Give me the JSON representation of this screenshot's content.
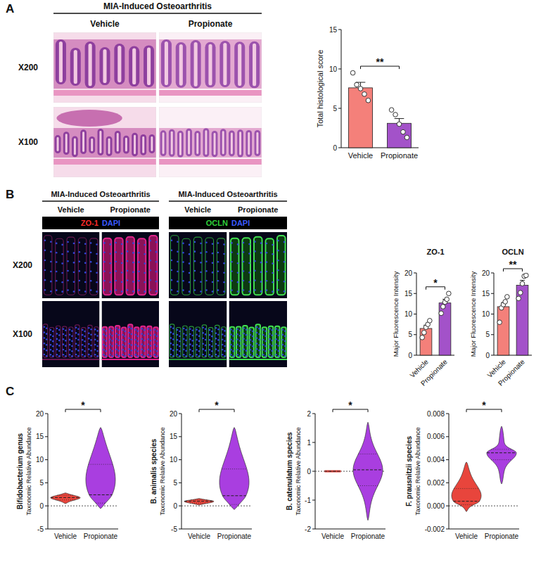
{
  "figure": {
    "panels": [
      {
        "letter": "A",
        "title": "MIA-Induced Osteoarthritis",
        "columns": [
          "Vehicle",
          "Propionate"
        ],
        "rows": [
          "X200",
          "X100"
        ]
      },
      {
        "letter": "B",
        "rows": [
          "X200",
          "X100"
        ],
        "groups": [
          {
            "title": "MIA-Induced Osteoarthritis",
            "columns": [
              "Vehicle",
              "Propionate"
            ],
            "stain": [
              {
                "text": "ZO-1",
                "color": "#ff2a2a"
              },
              {
                "text": "DAPI",
                "color": "#3b5bff"
              }
            ]
          },
          {
            "title": "MIA-Induced Osteoarthritis",
            "columns": [
              "Vehicle",
              "Propionate"
            ],
            "stain": [
              {
                "text": "OCLN",
                "color": "#2fd13a"
              },
              {
                "text": "DAPI",
                "color": "#3b5bff"
              }
            ]
          }
        ]
      },
      {
        "letter": "C"
      }
    ]
  },
  "chart_data": [
    {
      "type": "bar",
      "ylabel": "Total histological score",
      "categories": [
        "Vehicle",
        "Propionate"
      ],
      "values": [
        7.6,
        3.1
      ],
      "errors": [
        0.7,
        0.6
      ],
      "points": [
        [
          9.5,
          8.0,
          7.5,
          6.8,
          6.0
        ],
        [
          4.8,
          4.2,
          3.0,
          2.0,
          1.3
        ]
      ],
      "colors": [
        "#f4807a",
        "#a352c9"
      ],
      "ylim": [
        0,
        15
      ],
      "yticks": [
        0,
        5,
        10,
        15
      ],
      "significance": "**"
    },
    {
      "type": "bar",
      "title": "ZO-1",
      "ylabel": "Major Fluorescence Intensity",
      "categories": [
        "Vehicle",
        "Propionate"
      ],
      "values": [
        6.5,
        12.7
      ],
      "errors": [
        0.8,
        0.9
      ],
      "points": [
        [
          4.3,
          5.5,
          6.8,
          7.5,
          8.4
        ],
        [
          10.2,
          11.8,
          12.9,
          13.6,
          15.0
        ]
      ],
      "colors": [
        "#f4807a",
        "#a352c9"
      ],
      "ylim": [
        0,
        20
      ],
      "yticks": [
        0,
        5,
        10,
        15,
        20
      ],
      "significance": "*"
    },
    {
      "type": "bar",
      "title": "OCLN",
      "ylabel": "Major Fluorescence Intensity",
      "categories": [
        "Vehicle",
        "Propionate"
      ],
      "values": [
        11.8,
        17.0
      ],
      "errors": [
        1.0,
        1.2
      ],
      "points": [
        [
          8.0,
          11.5,
          12.3,
          13.0,
          14.2
        ],
        [
          13.8,
          15.2,
          17.4,
          19.2,
          19.4
        ]
      ],
      "colors": [
        "#f4807a",
        "#a352c9"
      ],
      "ylim": [
        0,
        20
      ],
      "yticks": [
        0,
        5,
        10,
        15,
        20
      ],
      "significance": "**"
    },
    {
      "type": "violin",
      "title": "Bifidobacterium genus",
      "ylabel": "Taxonomic Relative Abundance",
      "categories": [
        "Vehicle",
        "Propionate"
      ],
      "colors": [
        "#e8453c",
        "#a93ee0"
      ],
      "violins": [
        {
          "min": 0.5,
          "q1": 1.3,
          "median": 1.8,
          "q3": 2.3,
          "max": 2.8
        },
        {
          "min": -0.6,
          "q1": 0.6,
          "median": 2.4,
          "q3": 9.0,
          "max": 17.0
        }
      ],
      "ylim": [
        -5,
        20
      ],
      "yticks": [
        -5,
        0,
        5,
        10,
        15,
        20
      ],
      "reference_line": 0,
      "significance": "*"
    },
    {
      "type": "violin",
      "title": "B. animalis species",
      "ylabel": "Taxonomic Relative Abundance",
      "categories": [
        "Vehicle",
        "Propionate"
      ],
      "colors": [
        "#e8453c",
        "#a93ee0"
      ],
      "violins": [
        {
          "min": 0.2,
          "q1": 0.6,
          "median": 1.0,
          "q3": 1.3,
          "max": 1.6
        },
        {
          "min": -0.8,
          "q1": 0.3,
          "median": 2.2,
          "q3": 8.0,
          "max": 17.0
        }
      ],
      "ylim": [
        -5,
        20
      ],
      "yticks": [
        -5,
        0,
        5,
        10,
        15,
        20
      ],
      "reference_line": 0,
      "significance": "*"
    },
    {
      "type": "violin",
      "title": "B. catenulatum species",
      "ylabel": "Taxonomic Relative Abundance",
      "categories": [
        "Vehicle",
        "Propionate"
      ],
      "colors": [
        "#e8453c",
        "#a93ee0"
      ],
      "violins": [
        {
          "min": 0,
          "q1": 0,
          "median": 0,
          "q3": 0,
          "max": 0
        },
        {
          "min": -1.7,
          "q1": -0.5,
          "median": 0.05,
          "q3": 0.6,
          "max": 1.7
        }
      ],
      "ylim": [
        -2,
        2
      ],
      "yticks": [
        -2,
        -1,
        0,
        1,
        2
      ],
      "reference_line": 0,
      "significance": "*"
    },
    {
      "type": "violin",
      "title": "F. prausnitzii species",
      "ylabel": "Taxonomic Relative Abundance",
      "categories": [
        "Vehicle",
        "Propionate"
      ],
      "colors": [
        "#e8453c",
        "#a93ee0"
      ],
      "violins": [
        {
          "min": -0.0005,
          "q1": 0.0001,
          "median": 0.0004,
          "q3": 0.0015,
          "max": 0.0038
        },
        {
          "min": 0.0019,
          "q1": 0.004,
          "median": 0.0046,
          "q3": 0.0049,
          "max": 0.0069
        }
      ],
      "ylim": [
        -0.002,
        0.008
      ],
      "yticks": [
        -0.002,
        {
          "value": 0,
          "label": "0.000"
        },
        0.002,
        0.004,
        0.006,
        0.008
      ],
      "reference_line": 0,
      "significance": "*"
    }
  ]
}
